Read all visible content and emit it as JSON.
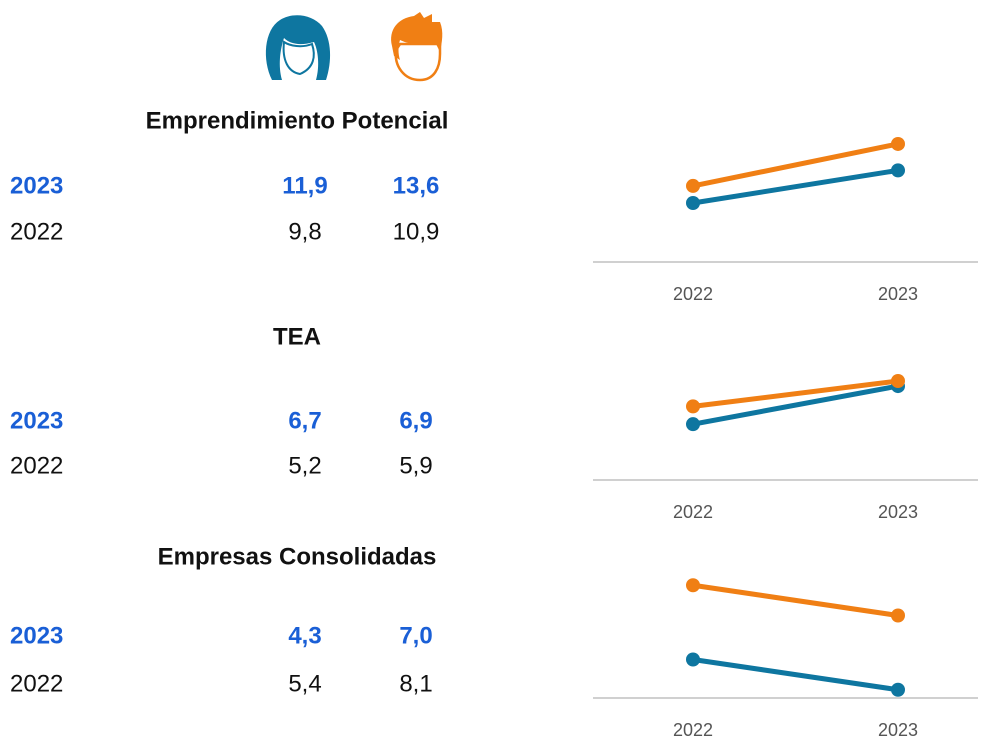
{
  "chart_data": [
    {
      "type": "line",
      "title": "Emprendimiento Potencial",
      "categories": [
        "2022",
        "2023"
      ],
      "series": [
        {
          "color": "#0e76a0",
          "values": [
            9.8,
            11.9
          ],
          "value_labels": [
            "9,8",
            "11,9"
          ]
        },
        {
          "color": "#f07f14",
          "values": [
            10.9,
            13.6
          ],
          "value_labels": [
            "10,9",
            "13,6"
          ]
        }
      ],
      "ylim": [
        6,
        14.5
      ]
    },
    {
      "type": "line",
      "title": "TEA",
      "categories": [
        "2022",
        "2023"
      ],
      "series": [
        {
          "color": "#0e76a0",
          "values": [
            5.2,
            6.7
          ],
          "value_labels": [
            "5,2",
            "6,7"
          ]
        },
        {
          "color": "#f07f14",
          "values": [
            5.9,
            6.9
          ],
          "value_labels": [
            "5,9",
            "6,9"
          ]
        }
      ],
      "ylim": [
        3,
        8.2
      ]
    },
    {
      "type": "line",
      "title": "Empresas Consolidadas",
      "categories": [
        "2022",
        "2023"
      ],
      "series": [
        {
          "color": "#0e76a0",
          "values": [
            5.4,
            4.3
          ],
          "value_labels": [
            "5,4",
            "4,3"
          ]
        },
        {
          "color": "#f07f14",
          "values": [
            8.1,
            7.0
          ],
          "value_labels": [
            "8,1",
            "7,0"
          ]
        }
      ],
      "ylim": [
        4,
        8.8
      ]
    }
  ]
}
